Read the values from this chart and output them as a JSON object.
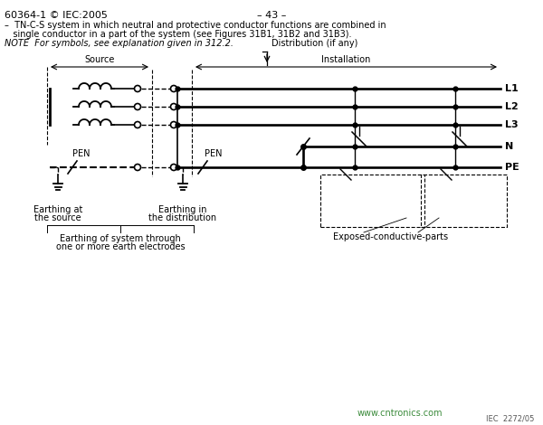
{
  "title_left": "60364-1 © IEC:2005",
  "title_center": "– 43 –",
  "desc_line1": "–  TN-C-S system in which neutral and protective conductor functions are combined in",
  "desc_line2": "   single conductor in a part of the system (see Figures 31B1, 31B2 and 31B3).",
  "note": "NOTE  For symbols, see explanation given in 312.2.",
  "watermark": "www.cntronics.com",
  "iec_ref": "IEC  2272/05",
  "bg_color": "#ffffff",
  "line_color": "#000000",
  "label_L1": "L1",
  "label_L2": "L2",
  "label_L3": "L3",
  "label_N": "N",
  "label_PE": "PE",
  "label_PEN1": "PEN",
  "label_PEN2": "PEN",
  "label_source": "Source",
  "label_installation": "Installation",
  "label_distribution": "Distribution (if any)",
  "label_earthing_source1": "Earthing at",
  "label_earthing_source2": "the source",
  "label_earthing_dist1": "Earthing in",
  "label_earthing_dist2": "the distribution",
  "label_exposed": "Exposed-conductive-parts",
  "label_earthing_system1": "Earthing of system through",
  "label_earthing_system2": "one or more earth electrodes"
}
